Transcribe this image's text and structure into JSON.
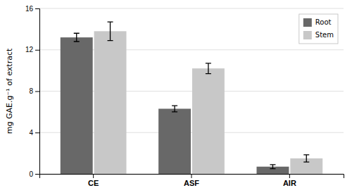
{
  "chart_data": {
    "type": "bar",
    "categories": [
      "CE",
      "ASF",
      "AIR"
    ],
    "series": [
      {
        "name": "Root",
        "color": "#686868",
        "values": [
          13.2,
          6.3,
          0.7
        ],
        "errors": [
          0.4,
          0.3,
          0.2
        ]
      },
      {
        "name": "Stem",
        "color": "#c8c8c8",
        "values": [
          13.8,
          10.2,
          1.5
        ],
        "errors": [
          0.9,
          0.5,
          0.35
        ]
      }
    ],
    "ylabel": "mg GAE.g⁻¹ of extract",
    "ylim": [
      0,
      16
    ],
    "yticks": [
      0,
      4,
      8,
      12,
      16
    ],
    "grid": true,
    "legend": "upper right"
  }
}
